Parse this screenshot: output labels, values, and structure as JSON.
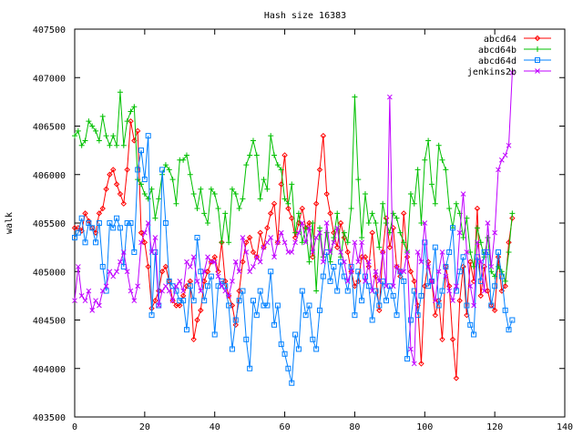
{
  "chart_data": {
    "type": "line",
    "title": "Hash size 16383",
    "xlabel": "",
    "ylabel": "walk",
    "xlim": [
      0,
      140
    ],
    "ylim": [
      403500,
      407500
    ],
    "x_ticks": [
      0,
      20,
      40,
      60,
      80,
      100,
      120,
      140
    ],
    "y_ticks": [
      403500,
      404000,
      404500,
      405000,
      405500,
      406000,
      406500,
      407000,
      407500
    ],
    "grid": false,
    "legend_position": "top-right",
    "series": [
      {
        "name": "abcd64",
        "color": "#ff0000",
        "marker": "diamond",
        "x": [
          0,
          1,
          2,
          3,
          4,
          5,
          6,
          7,
          8,
          9,
          10,
          11,
          12,
          13,
          14,
          15,
          16,
          17,
          18,
          19,
          20,
          21,
          22,
          23,
          24,
          25,
          26,
          27,
          28,
          29,
          30,
          31,
          32,
          33,
          34,
          35,
          36,
          37,
          38,
          39,
          40,
          41,
          42,
          43,
          44,
          45,
          46,
          47,
          48,
          49,
          50,
          51,
          52,
          53,
          54,
          55,
          56,
          57,
          58,
          59,
          60,
          61,
          62,
          63,
          64,
          65,
          66,
          67,
          68,
          69,
          70,
          71,
          72,
          73,
          74,
          75,
          76,
          77,
          78,
          79,
          80,
          81,
          82,
          83,
          84,
          85,
          86,
          87,
          88,
          89,
          90,
          91,
          92,
          93,
          94,
          95,
          96,
          97,
          98,
          99,
          100,
          101,
          102,
          103,
          104,
          105,
          106,
          107,
          108,
          109,
          110,
          111,
          112,
          113,
          114,
          115,
          116,
          117,
          118,
          119,
          120,
          121,
          122,
          123,
          124,
          125
        ],
        "values": [
          405450,
          405450,
          405420,
          405600,
          405520,
          405450,
          405400,
          405600,
          405650,
          405850,
          406000,
          406050,
          405900,
          405800,
          405700,
          406050,
          406550,
          406350,
          406450,
          405400,
          405300,
          405050,
          404620,
          404700,
          404800,
          405000,
          405050,
          404900,
          404700,
          404650,
          404650,
          404750,
          404850,
          404900,
          404300,
          404500,
          404600,
          404900,
          405000,
          405100,
          405150,
          405000,
          405300,
          404900,
          404750,
          404650,
          404450,
          404800,
          405100,
          405300,
          405350,
          405200,
          405150,
          405400,
          405250,
          405450,
          405600,
          405700,
          405300,
          405900,
          406200,
          405650,
          405550,
          405350,
          405500,
          405650,
          405450,
          405500,
          405150,
          405700,
          406050,
          406400,
          405800,
          405600,
          405400,
          405250,
          405500,
          405350,
          405200,
          405000,
          404850,
          404900,
          405150,
          405150,
          405050,
          405400,
          404950,
          404600,
          405200,
          405550,
          405250,
          405450,
          405050,
          404950,
          405600,
          405150,
          405000,
          404900,
          404650,
          404050,
          404850,
          405100,
          404900,
          404550,
          404700,
          404300,
          405050,
          404850,
          404300,
          403900,
          404700,
          405050,
          404550,
          405100,
          404900,
          405650,
          404750,
          405050,
          404800,
          404650,
          404600,
          405150,
          404800,
          404850,
          405300,
          405550
        ]
      },
      {
        "name": "abcd64b",
        "color": "#00c000",
        "marker": "plus",
        "x": [
          0,
          1,
          2,
          3,
          4,
          5,
          6,
          7,
          8,
          9,
          10,
          11,
          12,
          13,
          14,
          15,
          16,
          17,
          18,
          19,
          20,
          21,
          22,
          23,
          24,
          25,
          26,
          27,
          28,
          29,
          30,
          31,
          32,
          33,
          34,
          35,
          36,
          37,
          38,
          39,
          40,
          41,
          42,
          43,
          44,
          45,
          46,
          47,
          48,
          49,
          50,
          51,
          52,
          53,
          54,
          55,
          56,
          57,
          58,
          59,
          60,
          61,
          62,
          63,
          64,
          65,
          66,
          67,
          68,
          69,
          70,
          71,
          72,
          73,
          74,
          75,
          76,
          77,
          78,
          79,
          80,
          81,
          82,
          83,
          84,
          85,
          86,
          87,
          88,
          89,
          90,
          91,
          92,
          93,
          94,
          95,
          96,
          97,
          98,
          99,
          100,
          101,
          102,
          103,
          104,
          105,
          106,
          107,
          108,
          109,
          110,
          111,
          112,
          113,
          114,
          115,
          116,
          117,
          118,
          119,
          120,
          121,
          122,
          123,
          124,
          125
        ],
        "values": [
          406400,
          406450,
          406300,
          406350,
          406550,
          406500,
          406450,
          406350,
          406600,
          406400,
          406300,
          406400,
          406300,
          406850,
          406300,
          406550,
          406650,
          406700,
          405950,
          405900,
          405800,
          405750,
          405850,
          405550,
          405750,
          406000,
          406100,
          406050,
          405950,
          405700,
          406150,
          406150,
          406200,
          406000,
          405800,
          405650,
          405850,
          405600,
          405500,
          405850,
          405800,
          405650,
          405300,
          405600,
          405300,
          405850,
          405800,
          405650,
          405750,
          406100,
          406200,
          406350,
          406200,
          405750,
          405950,
          405850,
          406400,
          406200,
          406100,
          406050,
          405750,
          405700,
          405900,
          405400,
          405600,
          405300,
          405450,
          405100,
          405500,
          404800,
          405450,
          405150,
          405400,
          405100,
          405350,
          405600,
          405150,
          405400,
          405300,
          405650,
          406800,
          405950,
          405350,
          405800,
          405500,
          405600,
          405500,
          405250,
          405700,
          405500,
          405400,
          405600,
          405550,
          405400,
          405300,
          405200,
          405800,
          405700,
          406050,
          405500,
          406150,
          406350,
          405900,
          405700,
          406300,
          406150,
          406050,
          405650,
          405450,
          405700,
          405600,
          405350,
          405550,
          405200,
          405050,
          405450,
          405300,
          405150,
          405350,
          405000,
          404950,
          405050,
          405000,
          404900,
          405200,
          405600
        ]
      },
      {
        "name": "abcd64d",
        "color": "#0080ff",
        "marker": "square",
        "x": [
          0,
          1,
          2,
          3,
          4,
          5,
          6,
          7,
          8,
          9,
          10,
          11,
          12,
          13,
          14,
          15,
          16,
          17,
          18,
          19,
          20,
          21,
          22,
          23,
          24,
          25,
          26,
          27,
          28,
          29,
          30,
          31,
          32,
          33,
          34,
          35,
          36,
          37,
          38,
          39,
          40,
          41,
          42,
          43,
          44,
          45,
          46,
          47,
          48,
          49,
          50,
          51,
          52,
          53,
          54,
          55,
          56,
          57,
          58,
          59,
          60,
          61,
          62,
          63,
          64,
          65,
          66,
          67,
          68,
          69,
          70,
          71,
          72,
          73,
          74,
          75,
          76,
          77,
          78,
          79,
          80,
          81,
          82,
          83,
          84,
          85,
          86,
          87,
          88,
          89,
          90,
          91,
          92,
          93,
          94,
          95,
          96,
          97,
          98,
          99,
          100,
          101,
          102,
          103,
          104,
          105,
          106,
          107,
          108,
          109,
          110,
          111,
          112,
          113,
          114,
          115,
          116,
          117,
          118,
          119,
          120,
          121,
          122,
          123,
          124,
          125
        ],
        "values": [
          405350,
          405400,
          405550,
          405300,
          405500,
          405450,
          405300,
          405500,
          405050,
          404800,
          405500,
          405450,
          405550,
          405450,
          405050,
          405500,
          405500,
          405200,
          406050,
          406250,
          405950,
          406400,
          404550,
          405200,
          404650,
          406050,
          405500,
          404900,
          404850,
          404800,
          404700,
          404700,
          404400,
          404850,
          404700,
          405350,
          405000,
          404700,
          404850,
          404950,
          404350,
          404850,
          404900,
          404850,
          404650,
          404200,
          404500,
          404700,
          404800,
          404300,
          404000,
          404700,
          404550,
          404800,
          404650,
          404650,
          405000,
          404450,
          404650,
          404250,
          404150,
          404000,
          403850,
          404350,
          404200,
          404800,
          404550,
          404650,
          404300,
          404200,
          404600,
          404950,
          405200,
          404900,
          405050,
          404800,
          405100,
          404950,
          404800,
          405050,
          404550,
          405000,
          404700,
          404950,
          404850,
          404500,
          404800,
          404650,
          404900,
          404700,
          404850,
          404750,
          404550,
          405000,
          404900,
          404100,
          404500,
          404800,
          404550,
          404750,
          405300,
          404850,
          404900,
          405250,
          404650,
          404800,
          405050,
          405200,
          405450,
          404800,
          405000,
          405150,
          404650,
          404450,
          404350,
          405150,
          404900,
          405200,
          405200,
          404650,
          404850,
          405200,
          404950,
          404600,
          404400,
          404500
        ]
      },
      {
        "name": "jenkins2b",
        "color": "#c000ff",
        "marker": "cross",
        "x": [
          0,
          1,
          2,
          3,
          4,
          5,
          6,
          7,
          8,
          9,
          10,
          11,
          12,
          13,
          14,
          15,
          16,
          17,
          18,
          19,
          20,
          21,
          22,
          23,
          24,
          25,
          26,
          27,
          28,
          29,
          30,
          31,
          32,
          33,
          34,
          35,
          36,
          37,
          38,
          39,
          40,
          41,
          42,
          43,
          44,
          45,
          46,
          47,
          48,
          49,
          50,
          51,
          52,
          53,
          54,
          55,
          56,
          57,
          58,
          59,
          60,
          61,
          62,
          63,
          64,
          65,
          66,
          67,
          68,
          69,
          70,
          71,
          72,
          73,
          74,
          75,
          76,
          77,
          78,
          79,
          80,
          81,
          82,
          83,
          84,
          85,
          86,
          87,
          88,
          89,
          90,
          91,
          92,
          93,
          94,
          95,
          96,
          97,
          98,
          99,
          100,
          101,
          102,
          103,
          104,
          105,
          106,
          107,
          108,
          109,
          110,
          111,
          112,
          113,
          114,
          115,
          116,
          117,
          118,
          119,
          120,
          121,
          122,
          123,
          124,
          125
        ],
        "values": [
          404700,
          405050,
          404750,
          404700,
          404800,
          404600,
          404700,
          404650,
          404800,
          404850,
          405000,
          404950,
          405000,
          405100,
          405200,
          405000,
          404800,
          404700,
          404850,
          405300,
          405400,
          405500,
          405200,
          405350,
          404650,
          404800,
          404850,
          404800,
          404700,
          404850,
          404900,
          404800,
          405100,
          405050,
          405150,
          404900,
          404800,
          405000,
          405150,
          405100,
          405100,
          404950,
          404850,
          404800,
          404750,
          404900,
          405100,
          405000,
          405350,
          405200,
          405000,
          405050,
          405150,
          405100,
          405250,
          405300,
          405350,
          405150,
          405300,
          405400,
          405300,
          405200,
          405200,
          405300,
          405400,
          405500,
          405300,
          405450,
          405200,
          405350,
          405400,
          405100,
          405500,
          405200,
          405300,
          405450,
          405200,
          405100,
          404900,
          405000,
          405300,
          405100,
          405300,
          404900,
          405100,
          404800,
          405000,
          404900,
          405200,
          404850,
          406800,
          404850,
          405050,
          405000,
          405000,
          405200,
          404200,
          404050,
          405200,
          405100,
          405500,
          405050,
          404900,
          404700,
          405000,
          405200,
          404950,
          404800,
          404700,
          404850,
          405400,
          405800,
          405200,
          404850,
          404650,
          405300,
          405100,
          404800,
          405500,
          405050,
          405400,
          406050,
          406150,
          406200,
          406300,
          407050
        ]
      }
    ]
  }
}
